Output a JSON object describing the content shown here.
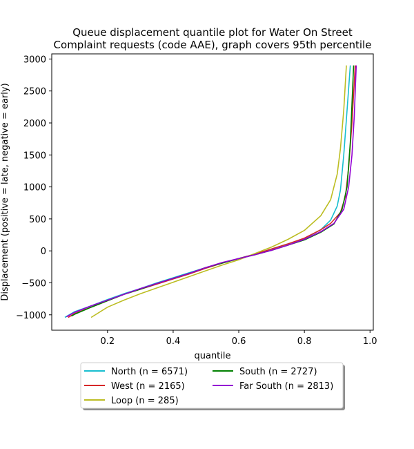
{
  "chart_data": {
    "type": "line",
    "title_lines": [
      "Queue displacement quantile plot for Water On Street",
      "Complaint  requests (code AAE), graph covers 95th percentile"
    ],
    "xlabel": "quantile",
    "ylabel": "Displacement (positive = late, negative = early)",
    "xlim": [
      0.03,
      1.01
    ],
    "ylim": [
      -1240,
      3080
    ],
    "xticks": [
      0.2,
      0.4,
      0.6,
      0.8,
      1.0
    ],
    "xtick_labels": [
      "0.2",
      "0.4",
      "0.6",
      "0.8",
      "1.0"
    ],
    "yticks": [
      -1000,
      -500,
      0,
      500,
      1000,
      1500,
      2000,
      2500,
      3000
    ],
    "ytick_labels": [
      "−1000",
      "−500",
      "0",
      "500",
      "1000",
      "1500",
      "2000",
      "2500",
      "3000"
    ],
    "grid": false,
    "legend_placement": "below the plot, two columns",
    "series": [
      {
        "name": "North (n = 6571)",
        "color": "#17becf",
        "x": [
          0.07,
          0.1,
          0.15,
          0.2,
          0.25,
          0.3,
          0.35,
          0.4,
          0.45,
          0.5,
          0.55,
          0.6,
          0.65,
          0.7,
          0.75,
          0.8,
          0.85,
          0.88,
          0.9,
          0.91,
          0.92,
          0.93,
          0.94
        ],
        "y": [
          -1040,
          -950,
          -860,
          -760,
          -670,
          -590,
          -500,
          -420,
          -340,
          -260,
          -190,
          -120,
          -50,
          30,
          110,
          190,
          330,
          480,
          700,
          950,
          1500,
          2200,
          2900
        ]
      },
      {
        "name": "West (n = 2165)",
        "color": "#d62728",
        "x": [
          0.08,
          0.1,
          0.15,
          0.2,
          0.25,
          0.3,
          0.35,
          0.4,
          0.45,
          0.5,
          0.55,
          0.6,
          0.65,
          0.7,
          0.75,
          0.8,
          0.85,
          0.88,
          0.91,
          0.925,
          0.935,
          0.945,
          0.955
        ],
        "y": [
          -1040,
          -980,
          -880,
          -780,
          -680,
          -600,
          -520,
          -440,
          -360,
          -270,
          -190,
          -120,
          -50,
          30,
          110,
          200,
          330,
          430,
          600,
          850,
          1300,
          2000,
          2900
        ]
      },
      {
        "name": "Loop (n = 285)",
        "color": "#bcbd22",
        "x": [
          0.15,
          0.2,
          0.25,
          0.3,
          0.35,
          0.4,
          0.45,
          0.5,
          0.55,
          0.6,
          0.65,
          0.7,
          0.75,
          0.8,
          0.85,
          0.88,
          0.9,
          0.91,
          0.92,
          0.928
        ],
        "y": [
          -1040,
          -880,
          -770,
          -670,
          -580,
          -490,
          -400,
          -310,
          -220,
          -140,
          -40,
          60,
          180,
          320,
          550,
          800,
          1200,
          1600,
          2200,
          2900
        ]
      },
      {
        "name": "South (n = 2727)",
        "color": "#008000",
        "x": [
          0.09,
          0.1,
          0.15,
          0.2,
          0.25,
          0.3,
          0.35,
          0.4,
          0.45,
          0.5,
          0.55,
          0.6,
          0.65,
          0.7,
          0.75,
          0.8,
          0.85,
          0.89,
          0.915,
          0.93,
          0.94,
          0.95
        ],
        "y": [
          -1020,
          -990,
          -880,
          -780,
          -680,
          -600,
          -510,
          -430,
          -350,
          -260,
          -190,
          -120,
          -60,
          10,
          90,
          170,
          290,
          420,
          650,
          1000,
          1700,
          2900
        ]
      },
      {
        "name": "Far South (n = 2813)",
        "color": "#9400d3",
        "x": [
          0.075,
          0.1,
          0.15,
          0.2,
          0.25,
          0.3,
          0.35,
          0.4,
          0.45,
          0.5,
          0.55,
          0.6,
          0.65,
          0.7,
          0.75,
          0.8,
          0.85,
          0.89,
          0.92,
          0.935,
          0.945,
          0.952,
          0.958
        ],
        "y": [
          -1030,
          -960,
          -860,
          -770,
          -680,
          -590,
          -510,
          -430,
          -350,
          -260,
          -180,
          -120,
          -60,
          10,
          90,
          180,
          300,
          430,
          650,
          1000,
          1500,
          2100,
          2900
        ]
      }
    ]
  }
}
